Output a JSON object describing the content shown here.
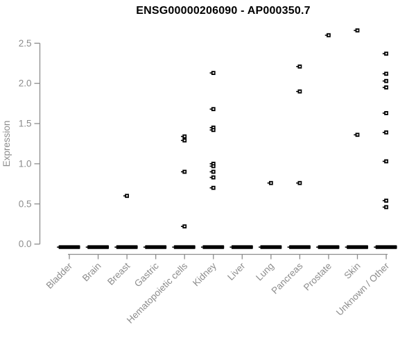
{
  "colors": {
    "background": "#ffffff",
    "title": "#000000",
    "axis": "#8c8c8c",
    "tick_label": "#8c8c8c",
    "point": "#000000"
  },
  "chart_data": {
    "type": "scatter",
    "title": "ENSG00000206090 - AP000350.7",
    "xlabel": "",
    "ylabel": "Expression",
    "ylim": [
      0,
      2.7
    ],
    "yticks": [
      0.0,
      0.5,
      1.0,
      1.5,
      2.0,
      2.5
    ],
    "grid": false,
    "legend": false,
    "marker": "open-square-with-left-tick",
    "categories": [
      "Bladder",
      "Brain",
      "Breast",
      "Gastric",
      "Hematopoietic cells",
      "Kidney",
      "Liver",
      "Lung",
      "Pancreas",
      "Prostate",
      "Skin",
      "Unknown / Other"
    ],
    "series": [
      {
        "category": "Bladder",
        "zero_cluster": true,
        "nonzero_values": []
      },
      {
        "category": "Brain",
        "zero_cluster": true,
        "nonzero_values": []
      },
      {
        "category": "Breast",
        "zero_cluster": true,
        "nonzero_values": [
          0.6
        ]
      },
      {
        "category": "Gastric",
        "zero_cluster": true,
        "nonzero_values": []
      },
      {
        "category": "Hematopoietic cells",
        "zero_cluster": true,
        "nonzero_values": [
          1.34,
          1.29,
          0.9,
          0.22
        ]
      },
      {
        "category": "Kidney",
        "zero_cluster": true,
        "nonzero_values": [
          2.13,
          1.68,
          1.45,
          1.42,
          1.0,
          0.97,
          0.9,
          0.83,
          0.7
        ]
      },
      {
        "category": "Liver",
        "zero_cluster": true,
        "nonzero_values": []
      },
      {
        "category": "Lung",
        "zero_cluster": true,
        "nonzero_values": [
          0.76
        ]
      },
      {
        "category": "Pancreas",
        "zero_cluster": true,
        "nonzero_values": [
          2.21,
          1.9,
          0.76
        ]
      },
      {
        "category": "Prostate",
        "zero_cluster": true,
        "nonzero_values": [
          2.6
        ]
      },
      {
        "category": "Skin",
        "zero_cluster": true,
        "nonzero_values": [
          2.66,
          1.36
        ]
      },
      {
        "category": "Unknown / Other",
        "zero_cluster": true,
        "nonzero_values": [
          2.37,
          2.12,
          2.03,
          1.95,
          1.63,
          1.39,
          1.03,
          0.54,
          0.46
        ]
      }
    ]
  }
}
